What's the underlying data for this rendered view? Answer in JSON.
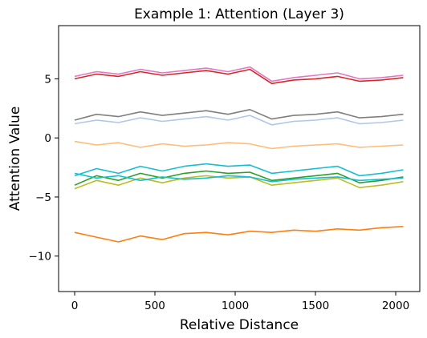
{
  "chart_data": {
    "type": "line",
    "title": "Example 1: Attention (Layer 3)",
    "xlabel": "Relative Distance",
    "ylabel": "Attention Value",
    "xlim": [
      -100,
      2150
    ],
    "ylim": [
      -13.0,
      9.5
    ],
    "xticks": [
      0,
      500,
      1000,
      1500,
      2000
    ],
    "xtick_labels": [
      "0",
      "500",
      "1000",
      "1500",
      "2000"
    ],
    "yticks": [
      -10,
      -5,
      0,
      5
    ],
    "ytick_labels": [
      "−10",
      "−5",
      "0",
      "5"
    ],
    "grid": false,
    "legend": "none",
    "x_range": [
      0,
      2047
    ],
    "series": [
      {
        "color": "#2ca02c",
        "values": [
          -4.0,
          -3.2,
          -3.6,
          -3.0,
          -3.4,
          -3.0,
          -2.8,
          -3.0,
          -2.9,
          -3.6,
          -3.4,
          -3.2,
          -3.0,
          -3.8,
          -3.6,
          -3.3
        ]
      },
      {
        "color": "#bcbd22",
        "values": [
          -4.3,
          -3.6,
          -4.0,
          -3.4,
          -3.8,
          -3.4,
          -3.2,
          -3.4,
          -3.3,
          -4.0,
          -3.8,
          -3.6,
          -3.4,
          -4.2,
          -4.0,
          -3.7
        ]
      },
      {
        "color": "#17becf",
        "values": [
          -3.2,
          -2.6,
          -3.0,
          -2.4,
          -2.8,
          -2.4,
          -2.2,
          -2.4,
          -2.3,
          -3.0,
          -2.8,
          -2.6,
          -2.4,
          -3.2,
          -3.0,
          -2.7
        ]
      },
      {
        "color": "#7f7f7f",
        "values": [
          1.5,
          2.0,
          1.8,
          2.2,
          1.9,
          2.1,
          2.3,
          2.0,
          2.4,
          1.6,
          1.9,
          2.0,
          2.2,
          1.7,
          1.8,
          2.0
        ]
      },
      {
        "color": "#aec7e8",
        "values": [
          1.2,
          1.5,
          1.3,
          1.7,
          1.4,
          1.6,
          1.8,
          1.5,
          1.9,
          1.1,
          1.4,
          1.5,
          1.7,
          1.2,
          1.3,
          1.5
        ]
      },
      {
        "color": "#d62728",
        "values": [
          5.0,
          5.4,
          5.2,
          5.6,
          5.3,
          5.5,
          5.7,
          5.4,
          5.8,
          4.6,
          4.9,
          5.0,
          5.2,
          4.8,
          4.9,
          5.1
        ]
      },
      {
        "color": "#e377c2",
        "values": [
          5.2,
          5.6,
          5.4,
          5.8,
          5.5,
          5.7,
          5.9,
          5.6,
          6.0,
          4.8,
          5.1,
          5.3,
          5.5,
          5.0,
          5.1,
          5.3
        ]
      },
      {
        "color": "#ffbb78",
        "values": [
          -0.3,
          -0.6,
          -0.4,
          -0.8,
          -0.5,
          -0.7,
          -0.6,
          -0.4,
          -0.5,
          -0.9,
          -0.7,
          -0.6,
          -0.5,
          -0.8,
          -0.7,
          -0.6
        ]
      },
      {
        "color": "#17becf",
        "values": [
          -3.0,
          -3.4,
          -3.2,
          -3.6,
          -3.3,
          -3.5,
          -3.4,
          -3.2,
          -3.3,
          -3.7,
          -3.5,
          -3.4,
          -3.3,
          -3.6,
          -3.5,
          -3.4
        ]
      },
      {
        "color": "#ff7f0e",
        "values": [
          -8.0,
          -8.4,
          -8.8,
          -8.3,
          -8.6,
          -8.1,
          -8.0,
          -8.2,
          -7.9,
          -8.0,
          -7.8,
          -7.9,
          -7.7,
          -7.8,
          -7.6,
          -7.5
        ]
      }
    ]
  }
}
